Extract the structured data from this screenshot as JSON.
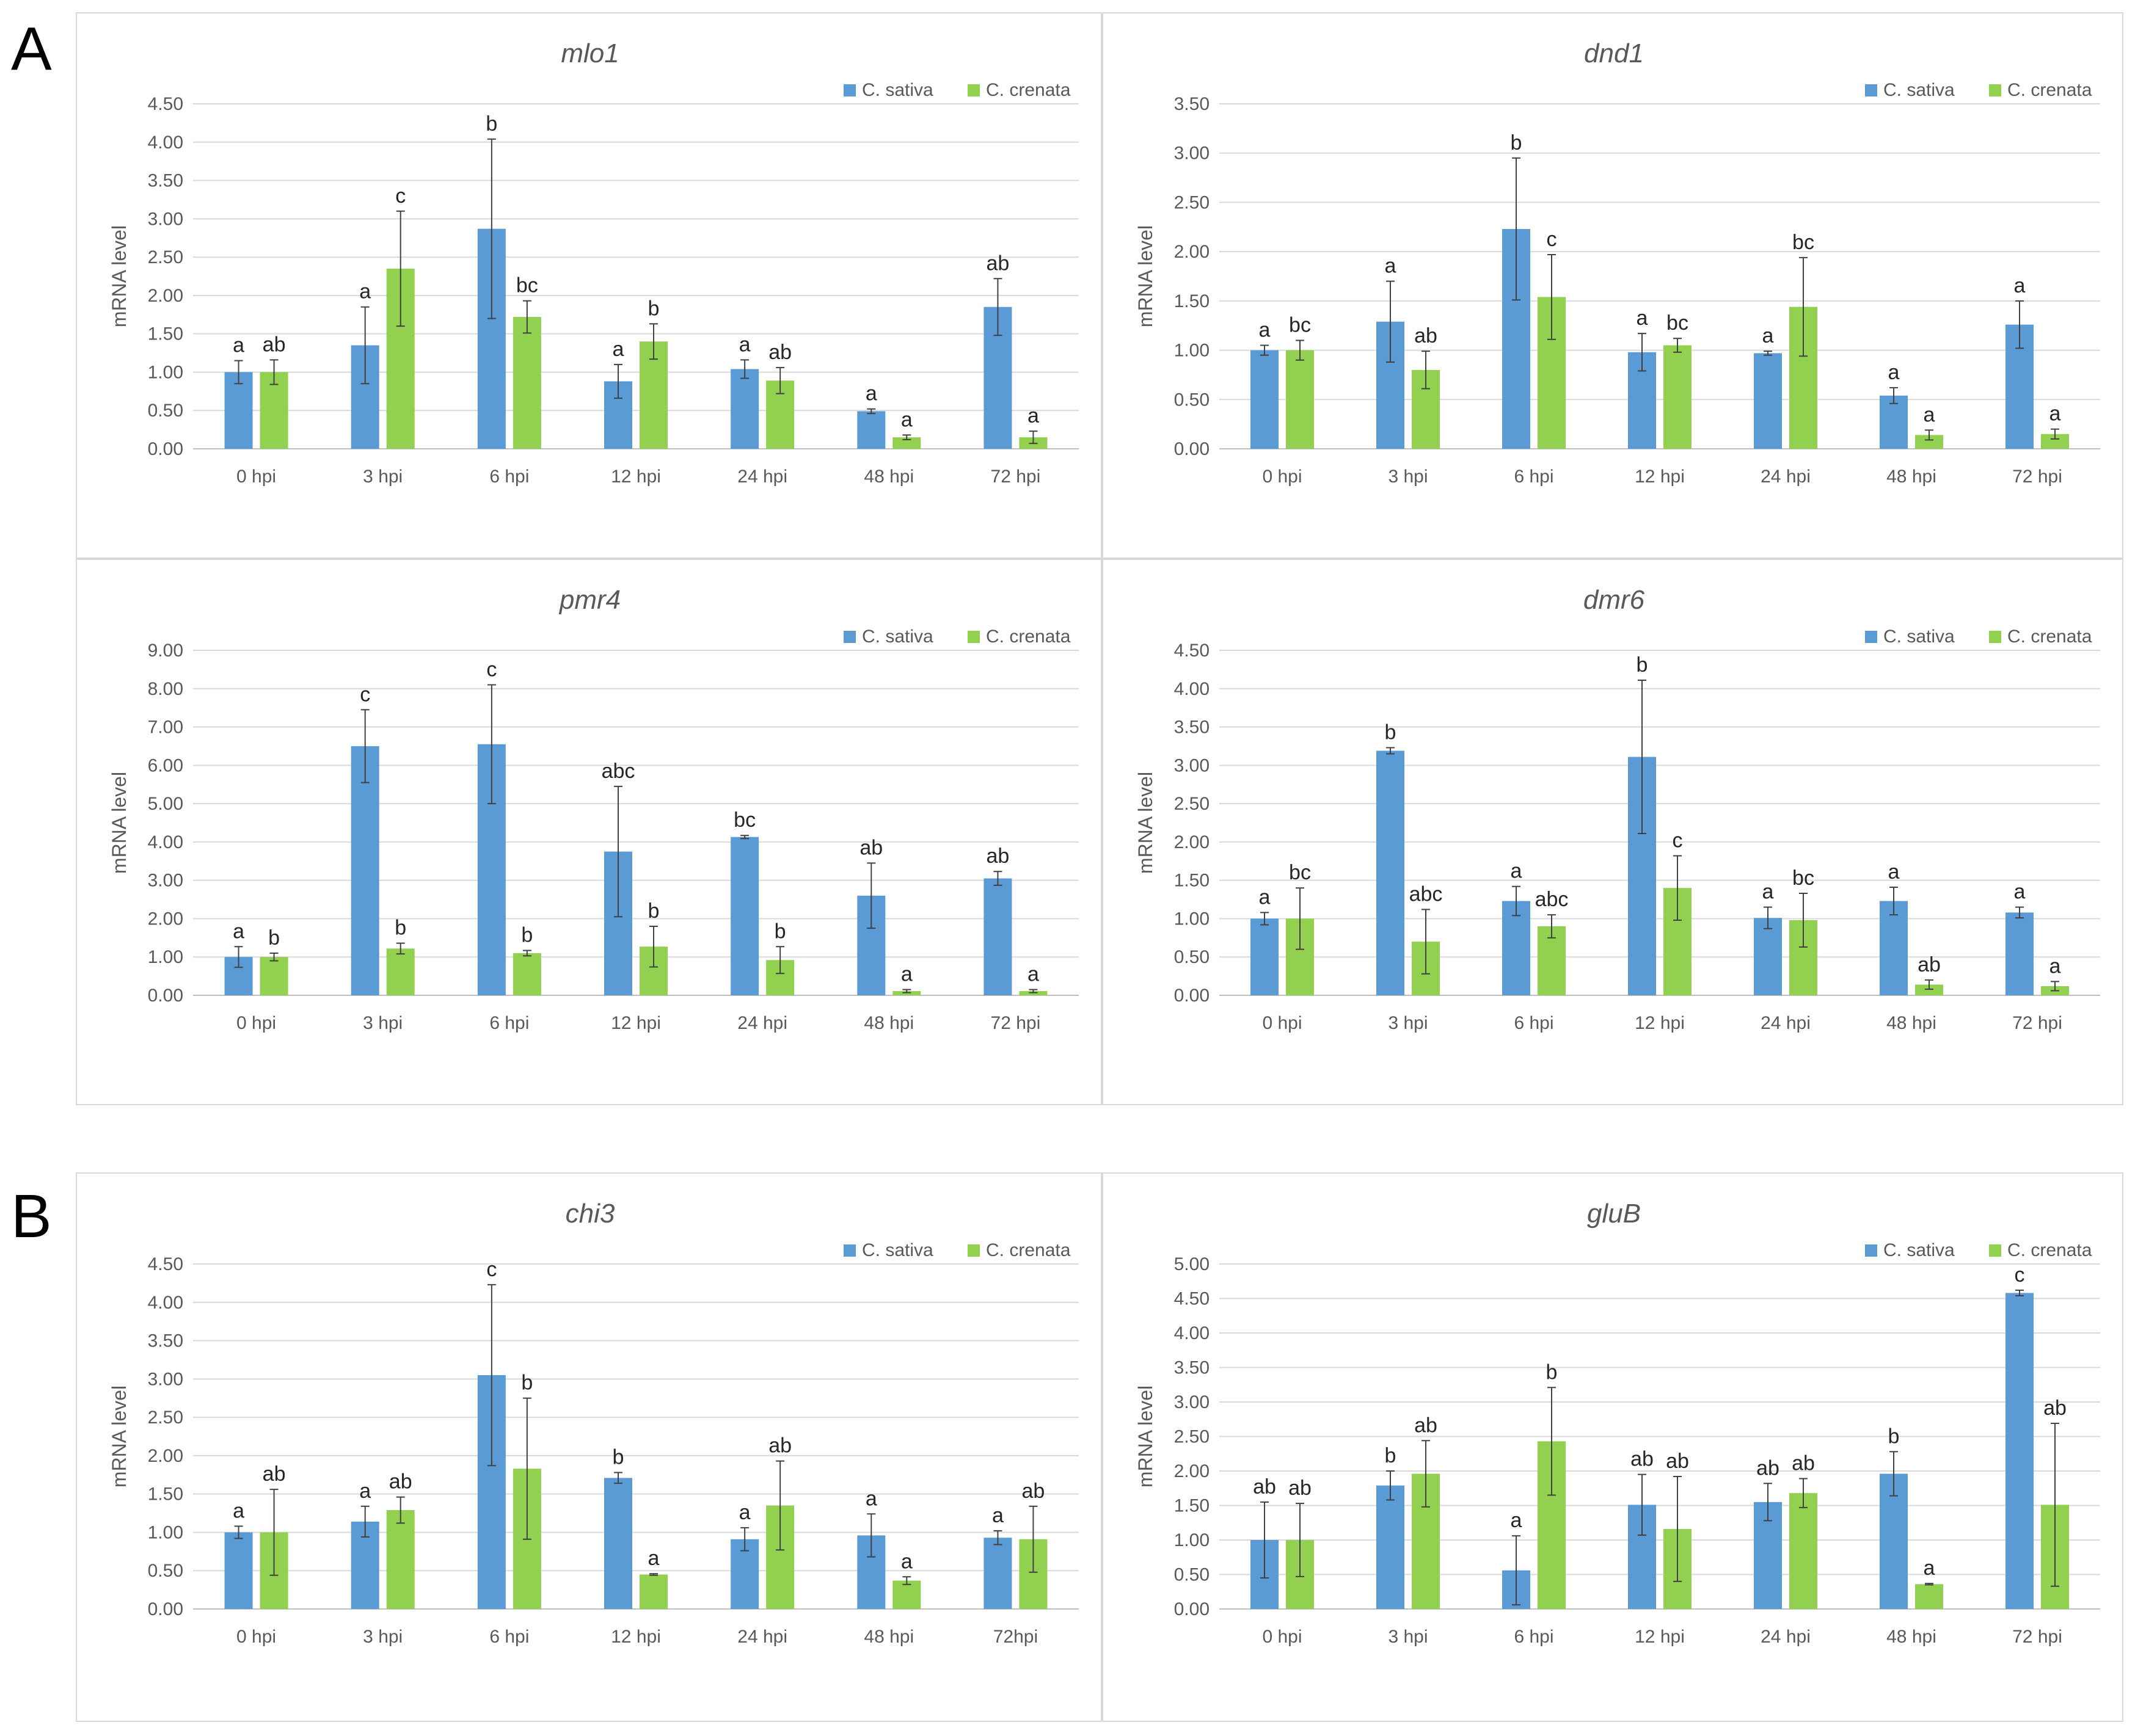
{
  "panel_labels": {
    "A": "A",
    "B": "B"
  },
  "colors": {
    "sativa": "#5b9bd5",
    "crenata": "#92d050",
    "grid": "#d9d9d9",
    "axis": "#bfbfbf",
    "text": "#595959",
    "error": "#404040"
  },
  "chart_data": [
    {
      "type": "bar",
      "title": "mlo1",
      "ylabel": "mRNA level",
      "ylim": [
        0,
        4.5
      ],
      "yticks": [
        "0.00",
        "0.50",
        "1.00",
        "1.50",
        "2.00",
        "2.50",
        "3.00",
        "3.50",
        "4.00",
        "4.50"
      ],
      "categories": [
        "0 hpi",
        "3 hpi",
        "6 hpi",
        "12 hpi",
        "24 hpi",
        "48 hpi",
        "72 hpi"
      ],
      "legend_position": "top-right",
      "series": [
        {
          "name": "C. sativa",
          "values": [
            1.0,
            1.35,
            2.87,
            0.88,
            1.04,
            0.49,
            1.85
          ],
          "errors": [
            0.15,
            0.5,
            1.17,
            0.22,
            0.12,
            0.03,
            0.37
          ],
          "labels": [
            "a",
            "a",
            "b",
            "a",
            "a",
            "a",
            "ab"
          ]
        },
        {
          "name": "C. crenata",
          "values": [
            1.0,
            2.35,
            1.72,
            1.4,
            0.89,
            0.15,
            0.15
          ],
          "errors": [
            0.16,
            0.75,
            0.21,
            0.23,
            0.17,
            0.03,
            0.08
          ],
          "labels": [
            "ab",
            "c",
            "bc",
            "b",
            "ab",
            "a",
            "a"
          ]
        }
      ]
    },
    {
      "type": "bar",
      "title": "dnd1",
      "ylabel": "mRNA level",
      "ylim": [
        0,
        3.5
      ],
      "yticks": [
        "0.00",
        "0.50",
        "1.00",
        "1.50",
        "2.00",
        "2.50",
        "3.00",
        "3.50"
      ],
      "categories": [
        "0 hpi",
        "3 hpi",
        "6 hpi",
        "12 hpi",
        "24 hpi",
        "48 hpi",
        "72 hpi"
      ],
      "legend_position": "top-right",
      "series": [
        {
          "name": "C. sativa",
          "values": [
            1.0,
            1.29,
            2.23,
            0.98,
            0.97,
            0.54,
            1.26
          ],
          "errors": [
            0.05,
            0.41,
            0.72,
            0.19,
            0.02,
            0.08,
            0.24
          ],
          "labels": [
            "a",
            "a",
            "b",
            "a",
            "a",
            "a",
            "a"
          ]
        },
        {
          "name": "C. crenata",
          "values": [
            1.0,
            0.8,
            1.54,
            1.05,
            1.44,
            0.14,
            0.15
          ],
          "errors": [
            0.1,
            0.19,
            0.43,
            0.07,
            0.5,
            0.05,
            0.05
          ],
          "labels": [
            "bc",
            "ab",
            "c",
            "bc",
            "bc",
            "a",
            "a"
          ]
        }
      ]
    },
    {
      "type": "bar",
      "title": "pmr4",
      "ylabel": "mRNA level",
      "ylim": [
        0,
        9
      ],
      "yticks": [
        "0.00",
        "1.00",
        "2.00",
        "3.00",
        "4.00",
        "5.00",
        "6.00",
        "7.00",
        "8.00",
        "9.00"
      ],
      "categories": [
        "0 hpi",
        "3 hpi",
        "6 hpi",
        "12 hpi",
        "24 hpi",
        "48 hpi",
        "72 hpi"
      ],
      "legend_position": "top-right",
      "series": [
        {
          "name": "C. sativa",
          "values": [
            1.0,
            6.5,
            6.55,
            3.75,
            4.13,
            2.6,
            3.05
          ],
          "errors": [
            0.27,
            0.95,
            1.55,
            1.7,
            0.04,
            0.85,
            0.18
          ],
          "labels": [
            "a",
            "c",
            "c",
            "abc",
            "bc",
            "ab",
            "ab"
          ]
        },
        {
          "name": "C. crenata",
          "values": [
            1.0,
            1.22,
            1.1,
            1.27,
            0.92,
            0.11,
            0.11
          ],
          "errors": [
            0.1,
            0.14,
            0.07,
            0.53,
            0.35,
            0.04,
            0.04
          ],
          "labels": [
            "b",
            "b",
            "b",
            "b",
            "b",
            "a",
            "a"
          ]
        }
      ]
    },
    {
      "type": "bar",
      "title": "dmr6",
      "ylabel": "mRNA level",
      "ylim": [
        0,
        4.5
      ],
      "yticks": [
        "0.00",
        "0.50",
        "1.00",
        "1.50",
        "2.00",
        "2.50",
        "3.00",
        "3.50",
        "4.00",
        "4.50"
      ],
      "categories": [
        "0 hpi",
        "3 hpi",
        "6 hpi",
        "12 hpi",
        "24 hpi",
        "48 hpi",
        "72 hpi"
      ],
      "legend_position": "top-right",
      "series": [
        {
          "name": "C. sativa",
          "values": [
            1.0,
            3.19,
            1.23,
            3.11,
            1.01,
            1.23,
            1.08
          ],
          "errors": [
            0.08,
            0.04,
            0.19,
            1.0,
            0.14,
            0.18,
            0.07
          ],
          "labels": [
            "a",
            "b",
            "a",
            "b",
            "a",
            "a",
            "a"
          ]
        },
        {
          "name": "C. crenata",
          "values": [
            1.0,
            0.7,
            0.9,
            1.4,
            0.98,
            0.14,
            0.12
          ],
          "errors": [
            0.4,
            0.42,
            0.15,
            0.42,
            0.35,
            0.06,
            0.06
          ],
          "labels": [
            "bc",
            "abc",
            "abc",
            "c",
            "bc",
            "ab",
            "a"
          ]
        }
      ]
    },
    {
      "type": "bar",
      "title": "chi3",
      "ylabel": "mRNA level",
      "ylim": [
        0,
        4.5
      ],
      "yticks": [
        "0.00",
        "0.50",
        "1.00",
        "1.50",
        "2.00",
        "2.50",
        "3.00",
        "3.50",
        "4.00",
        "4.50"
      ],
      "categories": [
        "0 hpi",
        "3 hpi",
        "6 hpi",
        "12 hpi",
        "24 hpi",
        "48 hpi",
        "72hpi"
      ],
      "legend_position": "top-right",
      "series": [
        {
          "name": "C. sativa",
          "values": [
            1.0,
            1.14,
            3.05,
            1.71,
            0.91,
            0.96,
            0.93
          ],
          "errors": [
            0.08,
            0.2,
            1.18,
            0.07,
            0.15,
            0.28,
            0.09
          ],
          "labels": [
            "a",
            "a",
            "c",
            "b",
            "a",
            "a",
            "a"
          ]
        },
        {
          "name": "C. crenata",
          "values": [
            1.0,
            1.29,
            1.83,
            0.45,
            1.35,
            0.37,
            0.91
          ],
          "errors": [
            0.56,
            0.17,
            0.92,
            0.01,
            0.58,
            0.05,
            0.43
          ],
          "labels": [
            "ab",
            "ab",
            "b",
            "a",
            "ab",
            "a",
            "ab"
          ]
        }
      ]
    },
    {
      "type": "bar",
      "title": "gluB",
      "ylabel": "mRNA level",
      "ylim": [
        0,
        5
      ],
      "yticks": [
        "0.00",
        "0.50",
        "1.00",
        "1.50",
        "2.00",
        "2.50",
        "3.00",
        "3.50",
        "4.00",
        "4.50",
        "5.00"
      ],
      "categories": [
        "0 hpi",
        "3 hpi",
        "6 hpi",
        "12 hpi",
        "24 hpi",
        "48 hpi",
        "72 hpi"
      ],
      "legend_position": "top-right",
      "series": [
        {
          "name": "C. sativa",
          "values": [
            1.0,
            1.79,
            0.56,
            1.51,
            1.55,
            1.96,
            4.58
          ],
          "errors": [
            0.55,
            0.21,
            0.5,
            0.44,
            0.27,
            0.32,
            0.04
          ],
          "labels": [
            "ab",
            "b",
            "a",
            "ab",
            "ab",
            "b",
            "c"
          ]
        },
        {
          "name": "C. crenata",
          "values": [
            1.0,
            1.96,
            2.43,
            1.16,
            1.68,
            0.36,
            1.51
          ],
          "errors": [
            0.53,
            0.48,
            0.78,
            0.76,
            0.21,
            0.01,
            1.18
          ],
          "labels": [
            "ab",
            "ab",
            "b",
            "ab",
            "ab",
            "a",
            "ab"
          ]
        }
      ]
    }
  ]
}
